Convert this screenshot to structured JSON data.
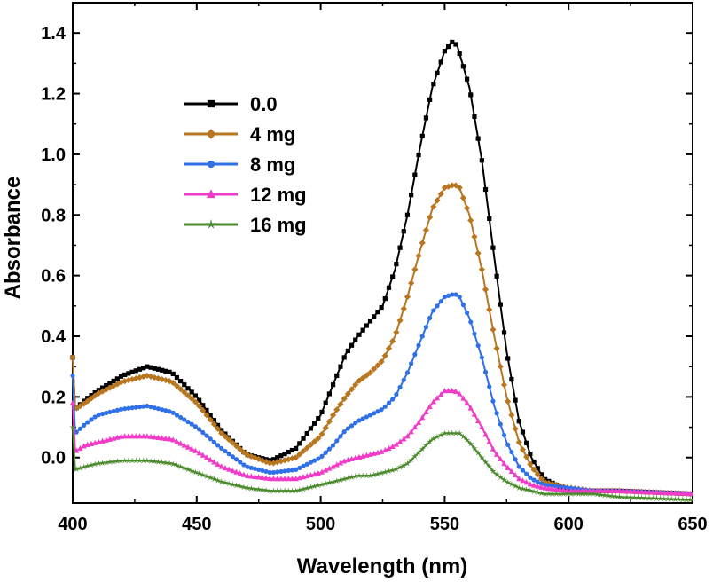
{
  "chart_data": {
    "type": "line",
    "title": "",
    "xlabel": "Wavelength (nm)",
    "ylabel": "Absorbance",
    "xlim": [
      400,
      650
    ],
    "ylim": [
      -0.15,
      1.5
    ],
    "xticks": [
      "400",
      "450",
      "500",
      "550",
      "600",
      "650"
    ],
    "yticks": [
      "0.0",
      "0.2",
      "0.4",
      "0.6",
      "0.8",
      "1.0",
      "1.2",
      "1.4"
    ],
    "legend_position": "upper-left",
    "series": [
      {
        "name": "0.0",
        "color": "#000000",
        "marker": "square",
        "x": [
          400,
          401,
          405,
          410,
          420,
          430,
          440,
          450,
          460,
          470,
          480,
          490,
          500,
          505,
          510,
          515,
          520,
          525,
          530,
          535,
          540,
          545,
          550,
          553,
          555,
          560,
          565,
          570,
          575,
          580,
          585,
          590,
          600,
          610,
          620,
          650
        ],
        "y": [
          0.33,
          0.16,
          0.19,
          0.22,
          0.27,
          0.3,
          0.28,
          0.2,
          0.09,
          0.01,
          -0.01,
          0.03,
          0.14,
          0.24,
          0.34,
          0.4,
          0.45,
          0.5,
          0.62,
          0.8,
          1.02,
          1.22,
          1.34,
          1.37,
          1.36,
          1.22,
          0.98,
          0.66,
          0.35,
          0.12,
          0.0,
          -0.07,
          -0.11,
          -0.11,
          -0.11,
          -0.12
        ]
      },
      {
        "name": "4 mg",
        "color": "#B8761F",
        "marker": "diamond",
        "x": [
          400,
          401,
          405,
          410,
          420,
          430,
          440,
          450,
          460,
          470,
          480,
          490,
          500,
          505,
          510,
          515,
          520,
          525,
          530,
          535,
          540,
          545,
          550,
          554,
          556,
          560,
          565,
          570,
          575,
          580,
          585,
          590,
          600,
          610,
          620,
          650
        ],
        "y": [
          0.33,
          0.16,
          0.18,
          0.21,
          0.25,
          0.27,
          0.25,
          0.18,
          0.08,
          0.01,
          -0.02,
          0.0,
          0.07,
          0.14,
          0.2,
          0.25,
          0.28,
          0.32,
          0.4,
          0.53,
          0.68,
          0.82,
          0.89,
          0.9,
          0.89,
          0.8,
          0.62,
          0.4,
          0.2,
          0.05,
          -0.03,
          -0.08,
          -0.1,
          -0.11,
          -0.11,
          -0.12
        ]
      },
      {
        "name": "8 mg",
        "color": "#2F6FE8",
        "marker": "circle",
        "x": [
          400,
          401,
          405,
          410,
          420,
          430,
          440,
          450,
          460,
          470,
          480,
          490,
          500,
          505,
          510,
          515,
          520,
          525,
          530,
          535,
          540,
          545,
          550,
          554,
          556,
          560,
          565,
          570,
          575,
          580,
          585,
          590,
          600,
          610,
          620,
          650
        ],
        "y": [
          0.27,
          0.08,
          0.11,
          0.14,
          0.16,
          0.17,
          0.15,
          0.1,
          0.03,
          -0.03,
          -0.05,
          -0.04,
          0.0,
          0.04,
          0.09,
          0.12,
          0.14,
          0.16,
          0.2,
          0.28,
          0.38,
          0.48,
          0.53,
          0.54,
          0.53,
          0.46,
          0.33,
          0.17,
          0.05,
          -0.03,
          -0.07,
          -0.09,
          -0.1,
          -0.11,
          -0.11,
          -0.12
        ]
      },
      {
        "name": "12 mg",
        "color": "#F03CC8",
        "marker": "triangle",
        "x": [
          400,
          401,
          405,
          410,
          420,
          430,
          440,
          450,
          460,
          470,
          480,
          490,
          500,
          505,
          510,
          515,
          520,
          525,
          530,
          535,
          540,
          545,
          550,
          554,
          556,
          560,
          565,
          570,
          575,
          580,
          585,
          590,
          600,
          610,
          620,
          650
        ],
        "y": [
          0.18,
          0.02,
          0.04,
          0.05,
          0.07,
          0.07,
          0.06,
          0.02,
          -0.03,
          -0.06,
          -0.07,
          -0.07,
          -0.05,
          -0.03,
          -0.01,
          0.0,
          0.01,
          0.02,
          0.04,
          0.07,
          0.12,
          0.18,
          0.22,
          0.22,
          0.21,
          0.17,
          0.1,
          0.02,
          -0.03,
          -0.07,
          -0.09,
          -0.1,
          -0.11,
          -0.11,
          -0.11,
          -0.12
        ]
      },
      {
        "name": "16 mg",
        "color": "#4A8A2C",
        "marker": "star",
        "x": [
          400,
          401,
          405,
          410,
          420,
          430,
          440,
          450,
          460,
          470,
          480,
          490,
          500,
          505,
          510,
          515,
          520,
          525,
          530,
          535,
          540,
          545,
          550,
          554,
          556,
          560,
          565,
          570,
          575,
          580,
          585,
          590,
          600,
          610,
          620,
          650
        ],
        "y": [
          0.1,
          -0.04,
          -0.03,
          -0.02,
          -0.01,
          -0.01,
          -0.02,
          -0.05,
          -0.08,
          -0.1,
          -0.11,
          -0.11,
          -0.09,
          -0.08,
          -0.07,
          -0.06,
          -0.06,
          -0.05,
          -0.04,
          -0.02,
          0.02,
          0.06,
          0.08,
          0.08,
          0.08,
          0.05,
          0.0,
          -0.05,
          -0.08,
          -0.1,
          -0.11,
          -0.12,
          -0.12,
          -0.12,
          -0.13,
          -0.14
        ]
      }
    ]
  }
}
